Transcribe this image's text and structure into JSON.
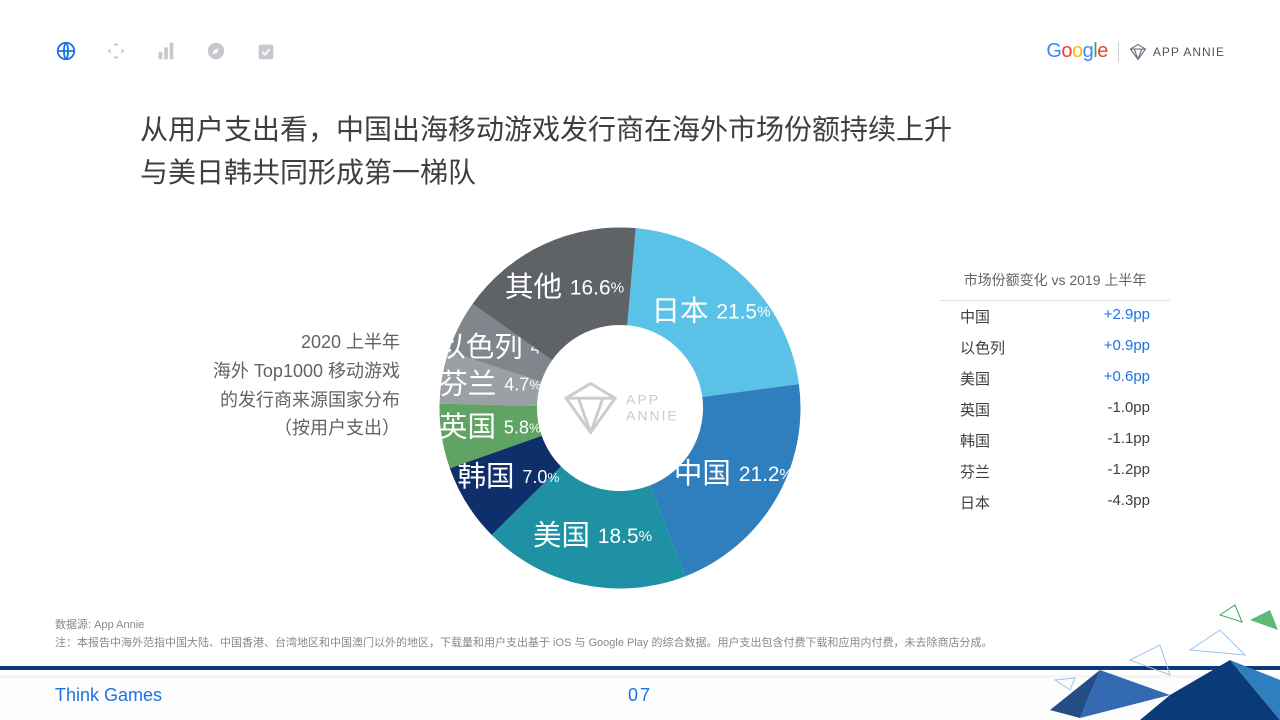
{
  "title_line1": "从用户支出看，中国出海移动游戏发行商在海外市场份额持续上升",
  "title_line2": "与美日韩共同形成第一梯队",
  "chart_desc_lines": [
    "2020 上半年",
    "海外 Top1000 移动游戏",
    "的发行商来源国家分布",
    "（按用户支出）"
  ],
  "donut": {
    "inner_ratio": 0.46,
    "slices": [
      {
        "label": "日本",
        "percent": 21.5,
        "color": "#5bc2e7"
      },
      {
        "label": "中国",
        "percent": 21.2,
        "color": "#2f7ebd"
      },
      {
        "label": "美国",
        "percent": 18.5,
        "color": "#1e91a5"
      },
      {
        "label": "韩国",
        "percent": 7.0,
        "color": "#0f2f6b"
      },
      {
        "label": "英国",
        "percent": 5.8,
        "color": "#5fa463"
      },
      {
        "label": "芬兰",
        "percent": 4.7,
        "color": "#9aa0a6"
      },
      {
        "label": "以色列",
        "percent": 4.7,
        "color": "#80868b"
      },
      {
        "label": "其他",
        "percent": 16.6,
        "color": "#5f6368"
      }
    ],
    "start_angle_deg": -85,
    "center_watermark": "APP ANNIE"
  },
  "change_table": {
    "header": "市场份额变化 vs 2019 上半年",
    "rows": [
      {
        "country": "中国",
        "delta": "+2.9pp",
        "positive": true
      },
      {
        "country": "以色列",
        "delta": "+0.9pp",
        "positive": true
      },
      {
        "country": "美国",
        "delta": "+0.6pp",
        "positive": true
      },
      {
        "country": "英国",
        "delta": "-1.0pp",
        "positive": false
      },
      {
        "country": "韩国",
        "delta": "-1.1pp",
        "positive": false
      },
      {
        "country": "芬兰",
        "delta": "-1.2pp",
        "positive": false
      },
      {
        "country": "日本",
        "delta": "-4.3pp",
        "positive": false
      }
    ]
  },
  "source": "数据源: App Annie",
  "note": "注：本报告中海外范指中国大陆、中国香港、台湾地区和中国澳门以外的地区，下载量和用户支出基于 iOS 与 Google Play 的综合数据。用户支出包含付费下载和应用内付费，未去除商店分成。",
  "footer_left": "Think Games",
  "footer_page": "07",
  "logos": {
    "appannie": "APP ANNIE"
  },
  "nav_icons": [
    {
      "name": "globe-icon",
      "active": true
    },
    {
      "name": "move-icon",
      "active": false
    },
    {
      "name": "bar-chart-icon",
      "active": false
    },
    {
      "name": "compass-icon",
      "active": false
    },
    {
      "name": "checkbox-icon",
      "active": false
    }
  ],
  "colors": {
    "accent": "#1a73e8",
    "foot_rule": "#0b3a78",
    "icon_inactive": "#c5c8cc"
  }
}
